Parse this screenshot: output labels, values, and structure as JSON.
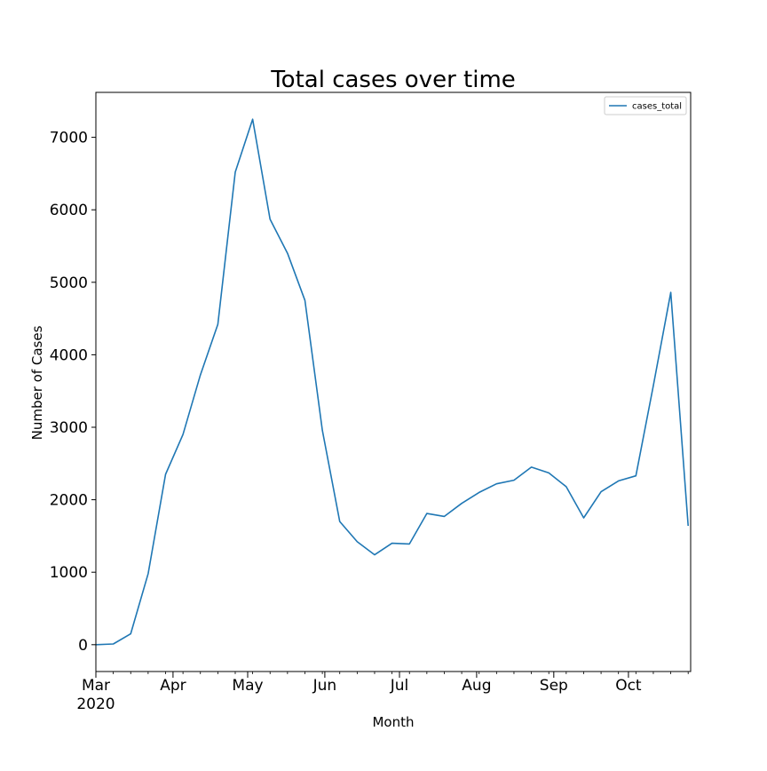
{
  "chart_data": {
    "type": "line",
    "title": "Total cases over time",
    "xlabel": "Month",
    "ylabel": "Number of Cases",
    "x_tick_labels": [
      "Mar\n2020",
      "Apr",
      "May",
      "Jun",
      "Jul",
      "Aug",
      "Sep",
      "Oct"
    ],
    "y_ticks": [
      0,
      1000,
      2000,
      3000,
      4000,
      5000,
      6000,
      7000
    ],
    "ylim": [
      -370,
      7620
    ],
    "xlim": [
      "2020-03-01",
      "2020-10-26"
    ],
    "legend": "top-right",
    "grid": false,
    "colors": {
      "series": "#1f77b4"
    },
    "series": [
      {
        "name": "cases_total",
        "x": [
          "2020-03-01",
          "2020-03-08",
          "2020-03-15",
          "2020-03-22",
          "2020-03-29",
          "2020-04-05",
          "2020-04-12",
          "2020-04-19",
          "2020-04-26",
          "2020-05-03",
          "2020-05-10",
          "2020-05-17",
          "2020-05-24",
          "2020-05-31",
          "2020-06-07",
          "2020-06-14",
          "2020-06-21",
          "2020-06-28",
          "2020-07-05",
          "2020-07-12",
          "2020-07-19",
          "2020-07-26",
          "2020-08-02",
          "2020-08-09",
          "2020-08-16",
          "2020-08-23",
          "2020-08-30",
          "2020-09-06",
          "2020-09-13",
          "2020-09-20",
          "2020-09-27",
          "2020-10-04",
          "2020-10-11",
          "2020-10-18",
          "2020-10-25"
        ],
        "values": [
          0,
          10,
          150,
          980,
          2350,
          2900,
          3720,
          4420,
          6520,
          7250,
          5870,
          5400,
          4750,
          2960,
          1700,
          1420,
          1240,
          1400,
          1390,
          1810,
          1770,
          1950,
          2100,
          2220,
          2270,
          2450,
          2370,
          2180,
          1750,
          2110,
          2260,
          2330,
          3570,
          4860,
          1640
        ]
      }
    ]
  }
}
